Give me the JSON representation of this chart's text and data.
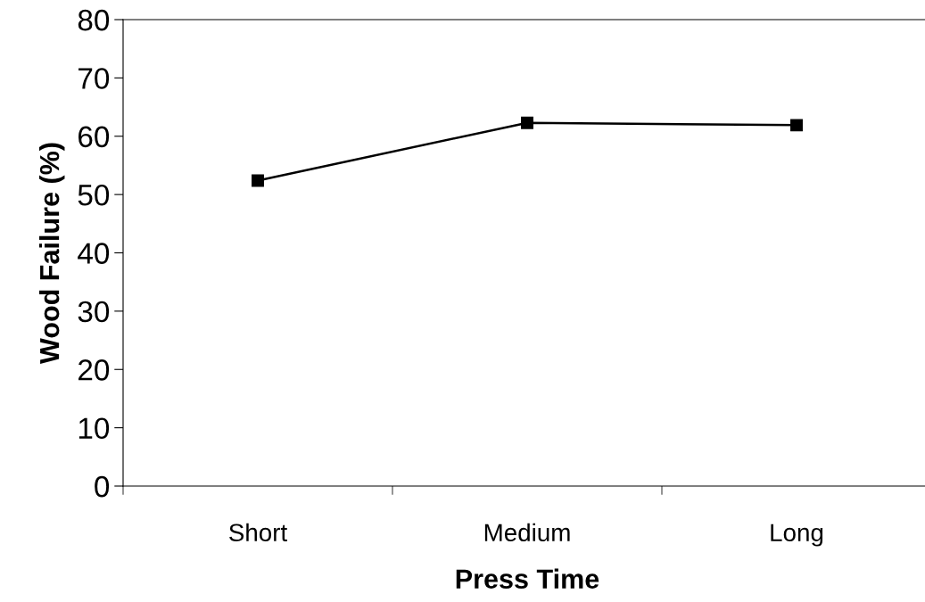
{
  "chart_data": {
    "type": "line",
    "xlabel": "Press Time",
    "ylabel": "Wood Failure (%)",
    "categories": [
      "Short",
      "Medium",
      "Long"
    ],
    "series": [
      {
        "color": "#000000",
        "values": [
          52.4,
          62.3,
          61.9
        ]
      }
    ],
    "ylim": [
      0,
      80
    ],
    "yticks": [
      0,
      10,
      20,
      30,
      40,
      50,
      60,
      70,
      80
    ],
    "marker": "square",
    "line_style": "solid",
    "grid": false,
    "legend": false
  }
}
